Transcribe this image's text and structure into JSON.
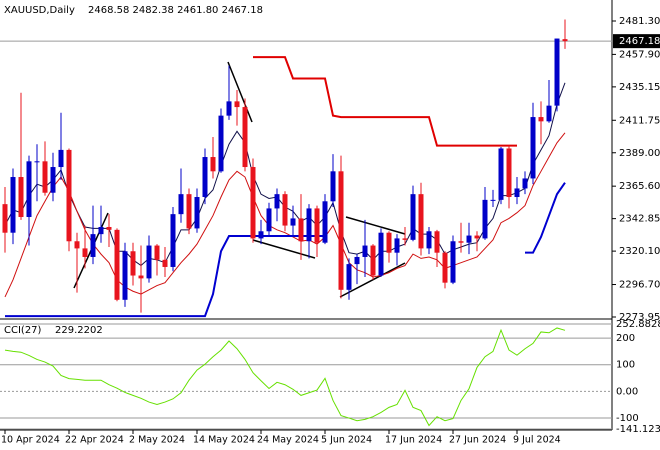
{
  "header": {
    "symbol": "XAUUSD,Daily",
    "ohlc": "2468.58 2482.38 2461.80 2467.18"
  },
  "chart_data": [
    {
      "type": "candlestick",
      "categories": [
        "10 Apr 2024",
        null,
        null,
        null,
        null,
        null,
        null,
        null,
        "22 Apr 2024",
        null,
        null,
        null,
        null,
        null,
        null,
        null,
        "2 May 2024",
        null,
        null,
        null,
        null,
        null,
        null,
        null,
        "14 May 2024",
        null,
        null,
        null,
        null,
        null,
        null,
        null,
        "24 May 2024",
        null,
        null,
        null,
        null,
        null,
        null,
        null,
        "5 Jun 2024",
        null,
        null,
        null,
        null,
        null,
        null,
        null,
        "17 Jun 2024",
        null,
        null,
        null,
        null,
        null,
        null,
        null,
        "27 Jun 2024",
        null,
        null,
        null,
        null,
        null,
        null,
        null,
        "9 Jul 2024",
        null,
        null,
        null,
        null,
        null,
        null
      ],
      "open": [
        2353,
        2333,
        2372,
        2344,
        2383,
        2383,
        2361,
        2379,
        2391,
        2327,
        2322,
        2316,
        2332,
        2337,
        2335,
        2286,
        2320,
        2303,
        2301,
        2324,
        2314,
        2309,
        2346,
        2360,
        2336,
        2358,
        2386,
        2376,
        2415,
        2425,
        2421,
        2379,
        2329,
        2334,
        2350,
        2360,
        2338,
        2343,
        2327,
        2350,
        2326,
        2355,
        2376,
        2293,
        2311,
        2316,
        2324,
        2303,
        2333,
        2319,
        2329,
        2328,
        2360,
        2322,
        2334,
        2319,
        2298,
        2327,
        2326,
        2331,
        2329,
        2356,
        2356,
        2392,
        2358,
        2364,
        2371,
        2414,
        2411,
        2422,
        2468.58
      ],
      "high": [
        2365,
        2378,
        2431,
        2387,
        2395,
        2397,
        2389,
        2417,
        2392,
        2333,
        2338,
        2352,
        2352,
        2346,
        2336,
        2326,
        2326,
        2324,
        2331,
        2325,
        2323,
        2351,
        2378,
        2364,
        2364,
        2392,
        2400,
        2420,
        2450,
        2433,
        2427,
        2385,
        2342,
        2354,
        2364,
        2362,
        2352,
        2360,
        2353,
        2352,
        2360,
        2388,
        2387,
        2315,
        2318,
        2342,
        2325,
        2336,
        2334,
        2332,
        2337,
        2366,
        2368,
        2337,
        2335,
        2320,
        2331,
        2340,
        2340,
        2334,
        2365,
        2363,
        2393,
        2394,
        2372,
        2376,
        2424,
        2425,
        2440,
        2469,
        2482.38
      ],
      "low": [
        2319,
        2325,
        2342,
        2324,
        2355,
        2359,
        2355,
        2370,
        2320,
        2291,
        2308,
        2311,
        2326,
        2323,
        2285,
        2281,
        2296,
        2277,
        2298,
        2303,
        2302,
        2306,
        2340,
        2332,
        2333,
        2353,
        2371,
        2375,
        2412,
        2408,
        2376,
        2326,
        2325,
        2331,
        2341,
        2334,
        2331,
        2314,
        2315,
        2316,
        2325,
        2351,
        2287,
        2286,
        2297,
        2302,
        2300,
        2302,
        2312,
        2310,
        2324,
        2327,
        2317,
        2318,
        2309,
        2294,
        2297,
        2319,
        2318,
        2320,
        2328,
        2351,
        2353,
        2350,
        2353,
        2360,
        2367,
        2395,
        2410,
        2418,
        2461.8
      ],
      "close": [
        2333,
        2372,
        2344,
        2383,
        2383,
        2361,
        2379,
        2391,
        2327,
        2322,
        2316,
        2332,
        2337,
        2335,
        2286,
        2320,
        2303,
        2301,
        2324,
        2314,
        2309,
        2346,
        2360,
        2336,
        2358,
        2386,
        2376,
        2415,
        2425,
        2421,
        2379,
        2329,
        2334,
        2350,
        2360,
        2338,
        2343,
        2327,
        2350,
        2326,
        2355,
        2376,
        2293,
        2311,
        2316,
        2324,
        2303,
        2333,
        2319,
        2329,
        2328,
        2360,
        2322,
        2334,
        2319,
        2298,
        2327,
        2326,
        2331,
        2329,
        2356,
        2356,
        2392,
        2358,
        2364,
        2371,
        2414,
        2411,
        2422,
        2469,
        2467.18
      ],
      "up_color": "#0000c8",
      "down_color": "#e8141e",
      "series": [
        {
          "color": "#10104a",
          "values": [
            2338,
            2349,
            2347,
            2359,
            2367,
            2365,
            2370,
            2377,
            2360,
            2348,
            2337,
            2336,
            2336,
            2336,
            2320,
            2320,
            2314,
            2310,
            2315,
            2314,
            2312,
            2323,
            2335,
            2335,
            2343,
            2357,
            2363,
            2380,
            2395,
            2404,
            2396,
            2373,
            2360,
            2357,
            2358,
            2351,
            2348,
            2341,
            2344,
            2338,
            2344,
            2354,
            2334,
            2319,
            2318,
            2320,
            2314,
            2320,
            2320,
            2323,
            2325,
            2336,
            2332,
            2332,
            2328,
            2318,
            2321,
            2323,
            2325,
            2326,
            2336,
            2343,
            2359,
            2359,
            2361,
            2364,
            2381,
            2391,
            2401,
            2423,
            2438
          ]
        },
        {
          "color": "#d01010",
          "values": [
            2288,
            2300,
            2315,
            2330,
            2345,
            2355,
            2365,
            2372,
            2362,
            2348,
            2335,
            2325,
            2318,
            2312,
            2300,
            2295,
            2292,
            2290,
            2293,
            2296,
            2298,
            2305,
            2312,
            2318,
            2325,
            2335,
            2345,
            2358,
            2370,
            2376,
            2372,
            2358,
            2345,
            2338,
            2335,
            2333,
            2330,
            2327,
            2328,
            2325,
            2330,
            2338,
            2325,
            2312,
            2307,
            2305,
            2302,
            2303,
            2305,
            2308,
            2310,
            2318,
            2315,
            2316,
            2314,
            2308,
            2310,
            2312,
            2314,
            2316,
            2322,
            2328,
            2340,
            2343,
            2347,
            2352,
            2366,
            2376,
            2386,
            2396,
            2403
          ]
        },
        {
          "color": "#0000d0",
          "width": 2,
          "values": [
            2274.6,
            2274.6,
            2274.6,
            2274.6,
            2274.6,
            2274.6,
            2274.6,
            2274.6,
            2274.6,
            2274.6,
            2274.6,
            2274.6,
            2274.6,
            2274.6,
            2274.6,
            2274.6,
            2274.6,
            2274.6,
            2274.6,
            2274.6,
            2274.6,
            2274.6,
            2274.6,
            2274.6,
            2274.6,
            2274.6,
            2290,
            2320,
            2330.7,
            2330.7,
            2330.7,
            2330.7,
            2330.7,
            2330.7,
            2330.7,
            2330.7,
            2330.7,
            2330.7,
            2330.7,
            2330.7,
            2330.7,
            null,
            null,
            null,
            null,
            null,
            null,
            null,
            null,
            null,
            null,
            null,
            null,
            null,
            null,
            null,
            null,
            null,
            null,
            null,
            null,
            null,
            null,
            null,
            null,
            2319,
            2319,
            2330,
            2345,
            2360,
            2368
          ]
        },
        {
          "color": "#e00000",
          "width": 2,
          "values": [
            null,
            null,
            null,
            null,
            null,
            null,
            null,
            null,
            null,
            null,
            null,
            null,
            null,
            null,
            null,
            null,
            null,
            null,
            null,
            null,
            null,
            null,
            null,
            null,
            null,
            null,
            null,
            null,
            null,
            null,
            null,
            2456,
            2456,
            2456,
            2456,
            2456,
            2441,
            2441,
            2441,
            2441,
            2441,
            2415,
            2414,
            2414,
            2414,
            2414,
            2414,
            2414,
            2414,
            2414,
            2414,
            2414,
            2414,
            2414,
            2394,
            2394,
            2394,
            2394,
            2394,
            2394,
            2394,
            2394,
            2394,
            2394,
            2394,
            null,
            null,
            null,
            null,
            null,
            null
          ]
        }
      ],
      "ylim": [
        2273.25,
        2494.6
      ],
      "yticks": [
        {
          "value": 2481.3,
          "label": "2481.30"
        },
        {
          "value": 2457.9,
          "label": "2457.90"
        },
        {
          "value": 2435.15,
          "label": "2435.15"
        },
        {
          "value": 2411.75,
          "label": "2411.75"
        },
        {
          "value": 2389,
          "label": "2389.00"
        },
        {
          "value": 2365.6,
          "label": "2365.60"
        },
        {
          "value": 2342.85,
          "label": "2342.85"
        },
        {
          "value": 2320.1,
          "label": "2320.10"
        },
        {
          "value": 2296.7,
          "label": "2296.70"
        },
        {
          "value": 2273.95,
          "label": "2273.95"
        }
      ],
      "price_line": {
        "value": 2467.18,
        "label": "2467.18"
      }
    },
    {
      "type": "line",
      "title": "CCI(27)",
      "series": [
        {
          "color": "#66e000",
          "values": [
            155,
            150,
            147,
            135,
            120,
            110,
            95,
            60,
            48,
            45,
            42,
            42,
            42,
            25,
            12,
            -4,
            -15,
            -26,
            -40,
            -49,
            -40,
            -28,
            -5,
            42,
            80,
            102,
            130,
            155,
            189,
            160,
            120,
            70,
            40,
            11,
            34,
            25,
            8,
            -15,
            -5,
            5,
            49,
            -34,
            -91,
            -100,
            -110,
            -105,
            -95,
            -79,
            -60,
            -49,
            4,
            -60,
            -72,
            -128,
            -95,
            -110,
            -102,
            -34,
            10,
            90,
            130,
            150,
            230,
            155,
            136,
            160,
            180,
            223,
            220,
            238,
            229.2202
          ]
        }
      ],
      "ylim": [
        -141.123,
        252.8828
      ],
      "yticks": [
        {
          "value": 252.8828,
          "label": "252.8828"
        },
        200,
        100,
        {
          "value": 0,
          "label": "0.00"
        },
        -100,
        {
          "value": -141.123,
          "label": "-141.123"
        }
      ]
    }
  ]
}
